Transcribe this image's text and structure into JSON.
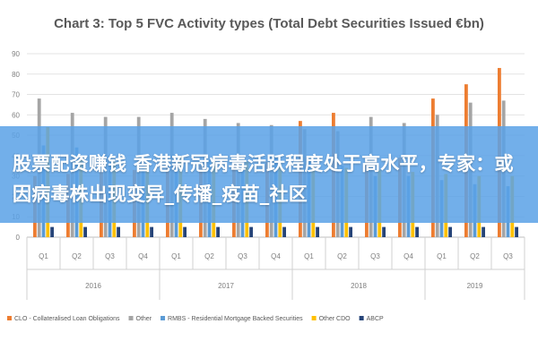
{
  "banner": {
    "headline": "股票配资赚钱 香港新冠病毒活跃程度处于高水平，专家：或因病毒株出现变异_传播_疫苗_社区"
  },
  "chart_data": {
    "type": "bar",
    "title": "Chart 3: Top 5 FVC Activity types (Total Debt Securities Issued €bn)",
    "xlabel": "",
    "ylabel": "",
    "ylim": [
      0,
      90
    ],
    "yticks": [
      0,
      10,
      20,
      30,
      40,
      50,
      60,
      70,
      80,
      90
    ],
    "grid": true,
    "legend_position": "bottom",
    "categories": [
      "Q1",
      "Q2",
      "Q3",
      "Q4",
      "Q1",
      "Q2",
      "Q3",
      "Q4",
      "Q1",
      "Q2",
      "Q3",
      "Q4",
      "Q1",
      "Q2",
      "Q3"
    ],
    "groups": [
      {
        "label": "2016",
        "from": 0,
        "to": 3
      },
      {
        "label": "2017",
        "from": 4,
        "to": 7
      },
      {
        "label": "2018",
        "from": 8,
        "to": 11
      },
      {
        "label": "2019",
        "from": 12,
        "to": 14
      }
    ],
    "series": [
      {
        "name": "CLO - Collateralised Loan Obligations",
        "color": "#ed7d31",
        "values": [
          30,
          31,
          32,
          33,
          34,
          35,
          36,
          37,
          57,
          61,
          38,
          39,
          68,
          75,
          83
        ]
      },
      {
        "name": "Other",
        "color": "#a5a5a5",
        "values": [
          68,
          61,
          59,
          59,
          61,
          58,
          56,
          55,
          53,
          52,
          59,
          56,
          60,
          66,
          67
        ]
      },
      {
        "name": "RMBS - Residential Mortgage Backed Securities",
        "color": "#5b9bd5",
        "values": [
          45,
          44,
          40,
          38,
          37,
          38,
          38,
          40,
          38,
          35,
          30,
          30,
          28,
          26,
          25
        ]
      },
      {
        "name": "Other CDO",
        "color": "#ffc000",
        "values": [
          54,
          38,
          37,
          36,
          40,
          38,
          37,
          36,
          35,
          34,
          33,
          32,
          31,
          30,
          30
        ]
      },
      {
        "name": "ABCP",
        "color": "#264478",
        "values": [
          5,
          5,
          5,
          5,
          5,
          5,
          5,
          5,
          5,
          5,
          5,
          5,
          5,
          5,
          5
        ]
      }
    ]
  }
}
